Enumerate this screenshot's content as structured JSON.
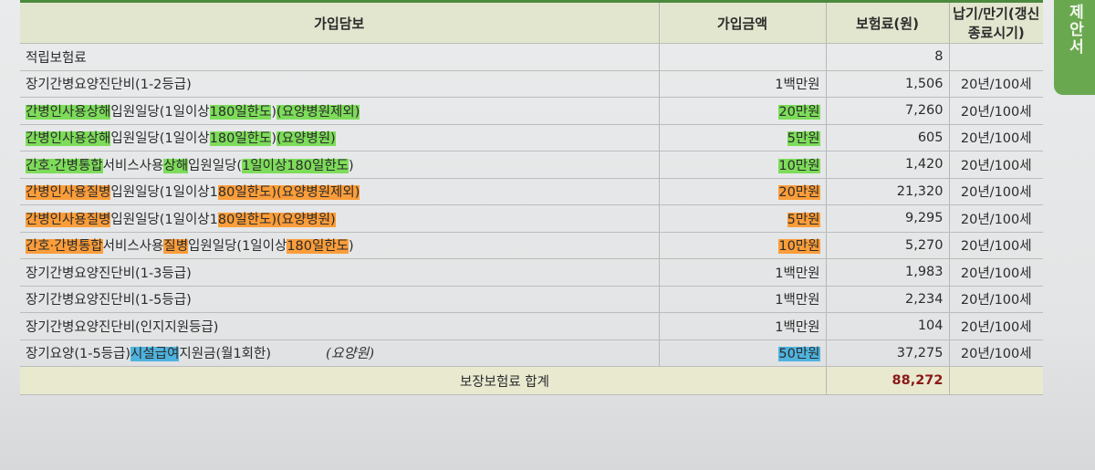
{
  "side_tab": "제안서",
  "headers": [
    "가입담보",
    "가입금액",
    "보험료(원)",
    "납기/만기(갱신종료시기)"
  ],
  "rows": [
    {
      "coverage": [
        {
          "t": "적립보험료"
        }
      ],
      "amount": "",
      "amount_hl": "",
      "premium": "8",
      "term": ""
    },
    {
      "coverage": [
        {
          "t": "장기간병요양진단비(1-2등급)"
        }
      ],
      "amount": "1백만원",
      "amount_hl": "",
      "premium": "1,506",
      "term": "20년/100세"
    },
    {
      "coverage": [
        {
          "t": "간병인사용상해",
          "h": "green"
        },
        {
          "t": "입원일당(1일이상"
        },
        {
          "t": "180일한도",
          "h": "green"
        },
        {
          "t": ")"
        },
        {
          "t": "(요양병원제외)",
          "h": "green"
        }
      ],
      "amount": "20만원",
      "amount_hl": "green",
      "premium": "7,260",
      "term": "20년/100세"
    },
    {
      "coverage": [
        {
          "t": "간병인사용상해",
          "h": "green"
        },
        {
          "t": "입원일당(1일이상"
        },
        {
          "t": "180일한도",
          "h": "green"
        },
        {
          "t": ")"
        },
        {
          "t": "(요양병원)",
          "h": "green"
        }
      ],
      "amount": "5만원",
      "amount_hl": "green",
      "premium": "605",
      "term": "20년/100세"
    },
    {
      "coverage": [
        {
          "t": "간호·간병통합",
          "h": "green"
        },
        {
          "t": "서비스사용"
        },
        {
          "t": "상해",
          "h": "green"
        },
        {
          "t": "입원일당("
        },
        {
          "t": "1일이상180일한도",
          "h": "green"
        },
        {
          "t": ")"
        }
      ],
      "amount": "10만원",
      "amount_hl": "green",
      "premium": "1,420",
      "term": "20년/100세"
    },
    {
      "coverage": [
        {
          "t": "간병인사용질병",
          "h": "orange"
        },
        {
          "t": "입원일당(1일이상1"
        },
        {
          "t": "80일한도)(요양병원제외)",
          "h": "orange"
        }
      ],
      "amount": "20만원",
      "amount_hl": "orange",
      "premium": "21,320",
      "term": "20년/100세"
    },
    {
      "coverage": [
        {
          "t": "간병인사용질병",
          "h": "orange"
        },
        {
          "t": "입원일당(1일이상1"
        },
        {
          "t": "80일한도)(요양병원)",
          "h": "orange"
        }
      ],
      "amount": "5만원",
      "amount_hl": "orange",
      "premium": "9,295",
      "term": "20년/100세"
    },
    {
      "coverage": [
        {
          "t": "간호·간병통합",
          "h": "orange"
        },
        {
          "t": "서비스사용"
        },
        {
          "t": "질병",
          "h": "orange"
        },
        {
          "t": "입원일당(1일이상"
        },
        {
          "t": "180일한도",
          "h": "orange"
        },
        {
          "t": ")"
        }
      ],
      "amount": "10만원",
      "amount_hl": "orange",
      "premium": "5,270",
      "term": "20년/100세"
    },
    {
      "coverage": [
        {
          "t": "장기간병요양진단비(1-3등급)"
        }
      ],
      "amount": "1백만원",
      "amount_hl": "",
      "premium": "1,983",
      "term": "20년/100세"
    },
    {
      "coverage": [
        {
          "t": "장기간병요양진단비(1-5등급)"
        }
      ],
      "amount": "1백만원",
      "amount_hl": "",
      "premium": "2,234",
      "term": "20년/100세"
    },
    {
      "coverage": [
        {
          "t": "장기간병요양진단비(인지지원등급)"
        }
      ],
      "amount": "1백만원",
      "amount_hl": "",
      "premium": "104",
      "term": "20년/100세"
    },
    {
      "coverage": [
        {
          "t": "장기요양(1-5등급)"
        },
        {
          "t": "시설급여",
          "h": "blue"
        },
        {
          "t": "지원금(월1회한)"
        }
      ],
      "handwritten": "(요양원)",
      "amount": "50만원",
      "amount_hl": "blue",
      "premium": "37,275",
      "term": "20년/100세"
    }
  ],
  "total": {
    "label": "보장보험료 합계",
    "value": "88,272"
  },
  "highlight_colors": {
    "green": "#7ddc5a",
    "orange": "#fb9d3a",
    "blue": "#4fb3de",
    "total_value": "#8b1a1a",
    "side_tab": "#6aa84f"
  }
}
